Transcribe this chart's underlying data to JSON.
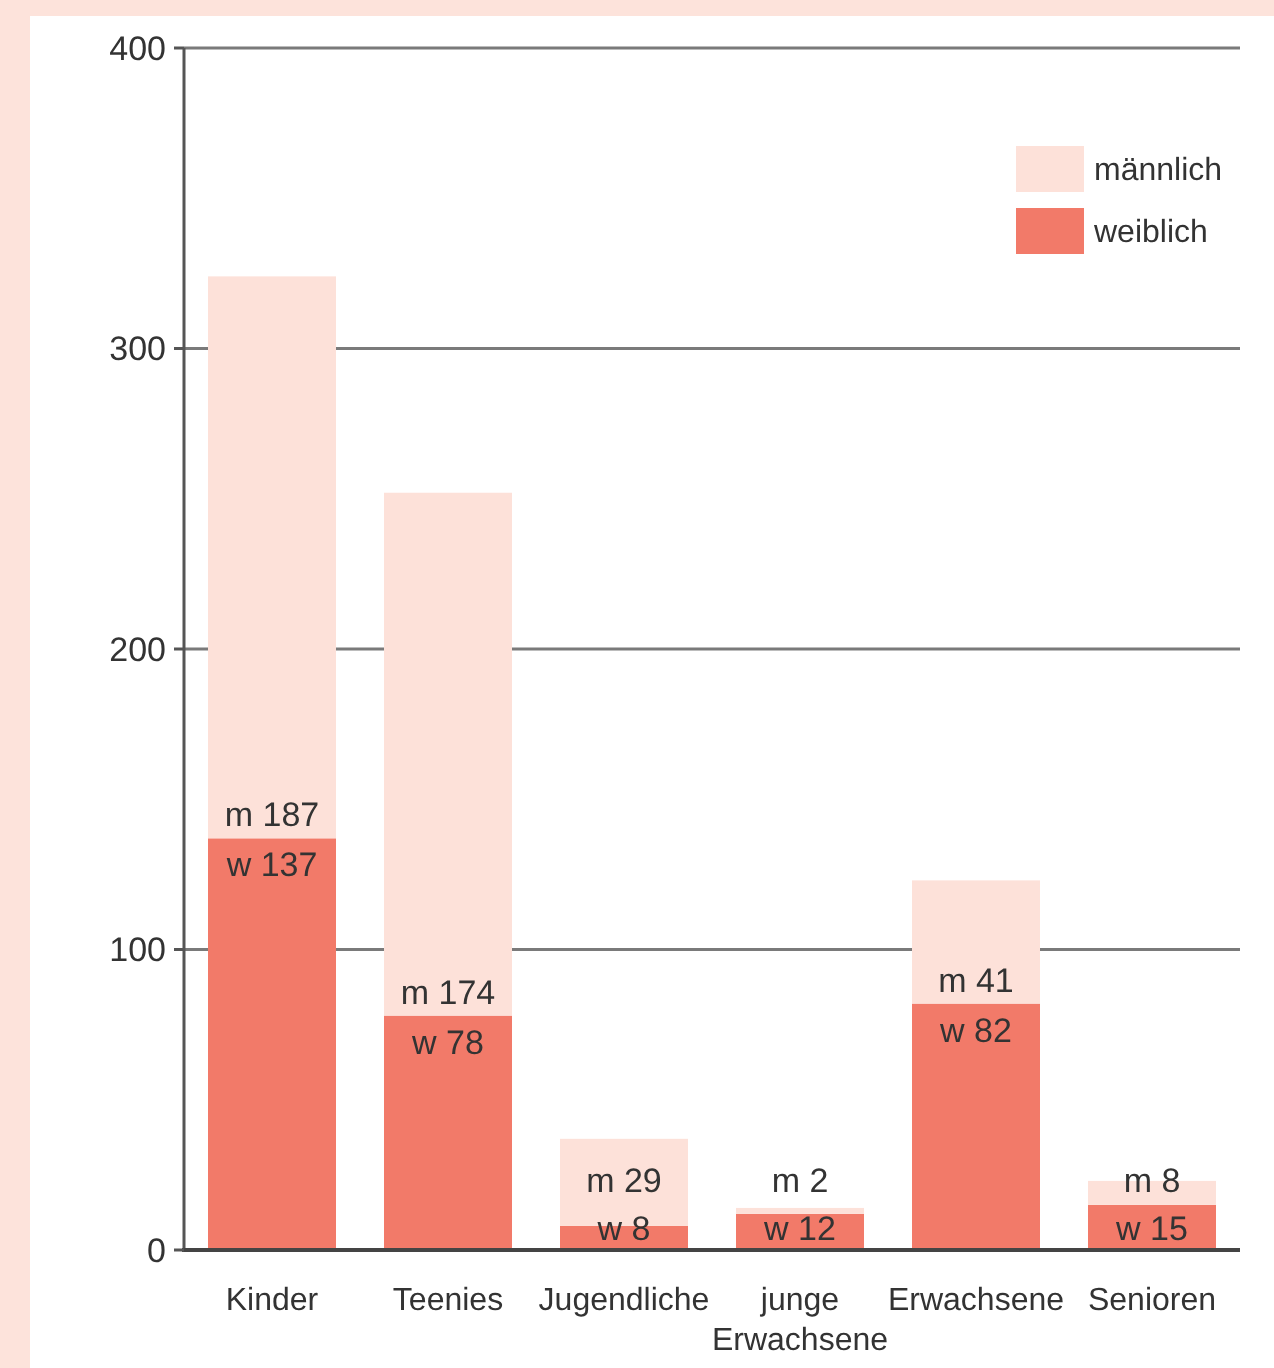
{
  "chart_data": {
    "type": "bar",
    "stacked": true,
    "categories": [
      "Kinder",
      "Teenies",
      "Jugendliche",
      "junge Erwachsene",
      "Erwachsene",
      "Senioren"
    ],
    "series": [
      {
        "name": "weiblich",
        "color": "#f27a69",
        "values": [
          137,
          78,
          8,
          12,
          82,
          15
        ],
        "value_labels": [
          "w 137",
          "w 78",
          "w 8",
          "w 12",
          "w 82",
          "w 15"
        ]
      },
      {
        "name": "männlich",
        "color": "#fde1d9",
        "values": [
          187,
          174,
          29,
          2,
          41,
          8
        ],
        "value_labels": [
          "m 187",
          "m 174",
          "m 29",
          "m 2",
          "m 41",
          "m 8"
        ]
      }
    ],
    "ylim": [
      0,
      400
    ],
    "yticks": [
      0,
      100,
      200,
      300,
      400
    ],
    "grid": "y",
    "legend": "top right"
  }
}
